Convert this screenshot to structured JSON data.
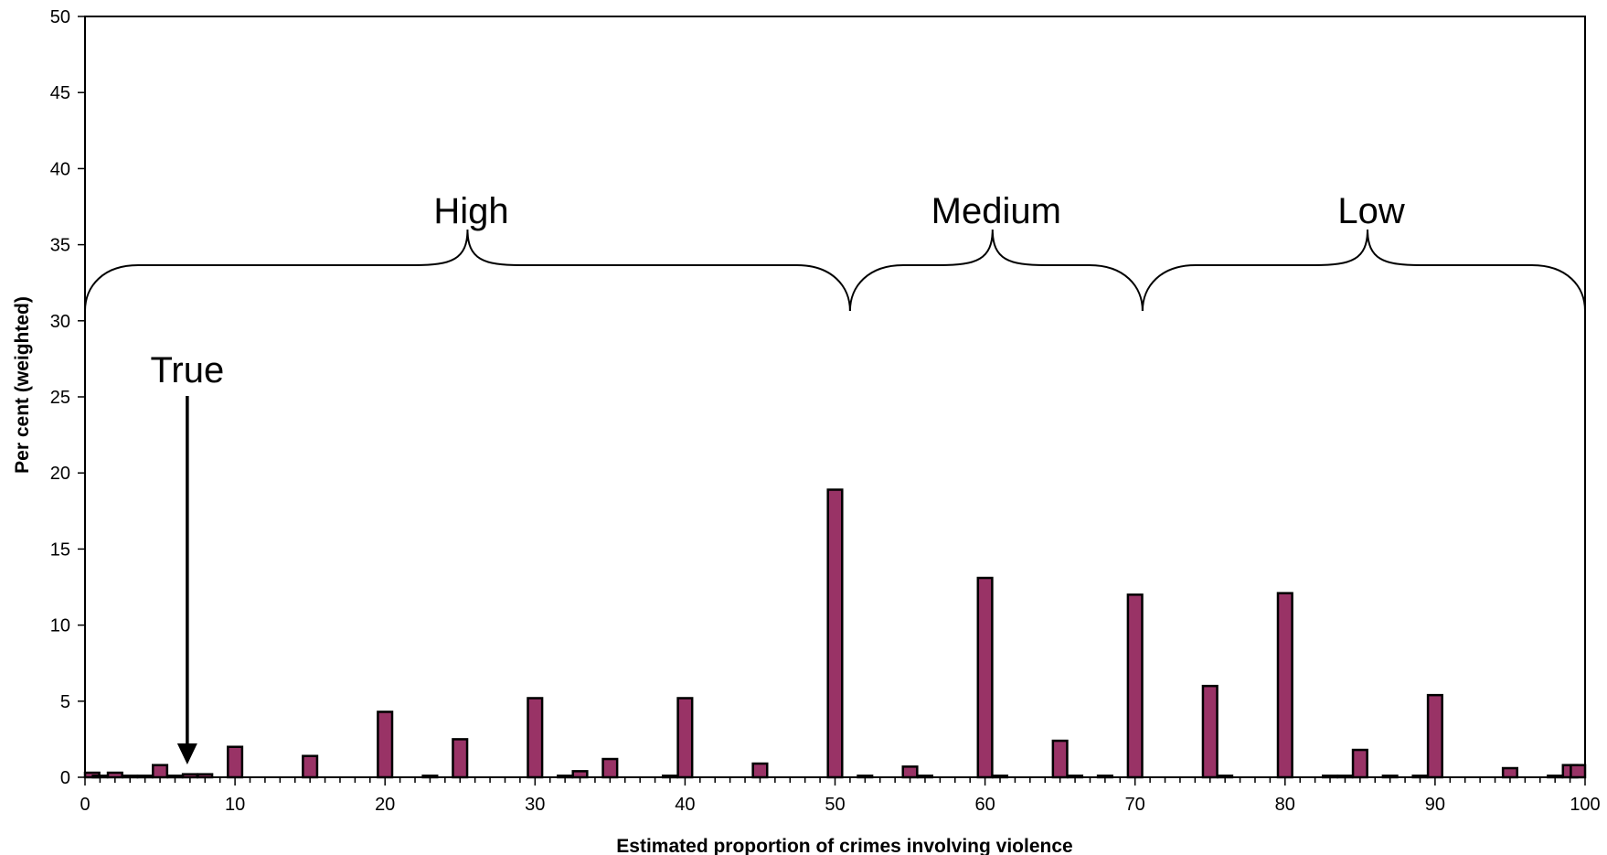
{
  "chart_data": {
    "type": "bar",
    "xlabel": "Estimated proportion of crimes involving violence",
    "ylabel": "Per cent (weighted)",
    "xlim": [
      0,
      100
    ],
    "ylim": [
      0,
      50
    ],
    "x_ticks": [
      0,
      10,
      20,
      30,
      40,
      50,
      60,
      70,
      80,
      90,
      100
    ],
    "y_ticks": [
      0,
      5,
      10,
      15,
      20,
      25,
      30,
      35,
      40,
      45,
      50
    ],
    "x_tick_labels": [
      "0",
      "10",
      "20",
      "30",
      "40",
      "50",
      "60",
      "70",
      "80",
      "90",
      "100"
    ],
    "y_tick_labels": [
      "0",
      "5",
      "10",
      "15",
      "20",
      "25",
      "30",
      "35",
      "40",
      "45",
      "50"
    ],
    "bar_color": "#993366",
    "x": [
      0,
      1,
      2,
      3,
      4,
      5,
      6,
      7,
      8,
      10,
      15,
      20,
      23,
      25,
      30,
      32,
      33,
      35,
      39,
      40,
      45,
      50,
      52,
      55,
      56,
      60,
      61,
      65,
      66,
      68,
      70,
      75,
      76,
      80,
      83,
      84,
      85,
      87,
      89,
      90,
      95,
      98,
      99,
      100
    ],
    "values": [
      0.3,
      0.1,
      0.3,
      0.1,
      0.1,
      0.8,
      0.1,
      0.2,
      0.2,
      2.0,
      1.4,
      4.3,
      0.1,
      2.5,
      5.2,
      0.1,
      0.4,
      1.2,
      0.1,
      5.2,
      0.9,
      18.9,
      0.1,
      0.7,
      0.1,
      13.1,
      0.1,
      2.4,
      0.1,
      0.1,
      12.0,
      6.0,
      0.1,
      12.1,
      0.1,
      0.1,
      1.8,
      0.1,
      0.1,
      5.4,
      0.6,
      0.1,
      0.8,
      0.8
    ],
    "annotations": {
      "true_label": "True",
      "true_x": 7,
      "groups": [
        {
          "label": "High",
          "from": 0,
          "to": 51,
          "peak": 25.5
        },
        {
          "label": "Medium",
          "from": 51,
          "to": 70.5,
          "peak": 60.5
        },
        {
          "label": "Low",
          "from": 70.5,
          "to": 100,
          "peak": 85.5
        }
      ]
    }
  }
}
